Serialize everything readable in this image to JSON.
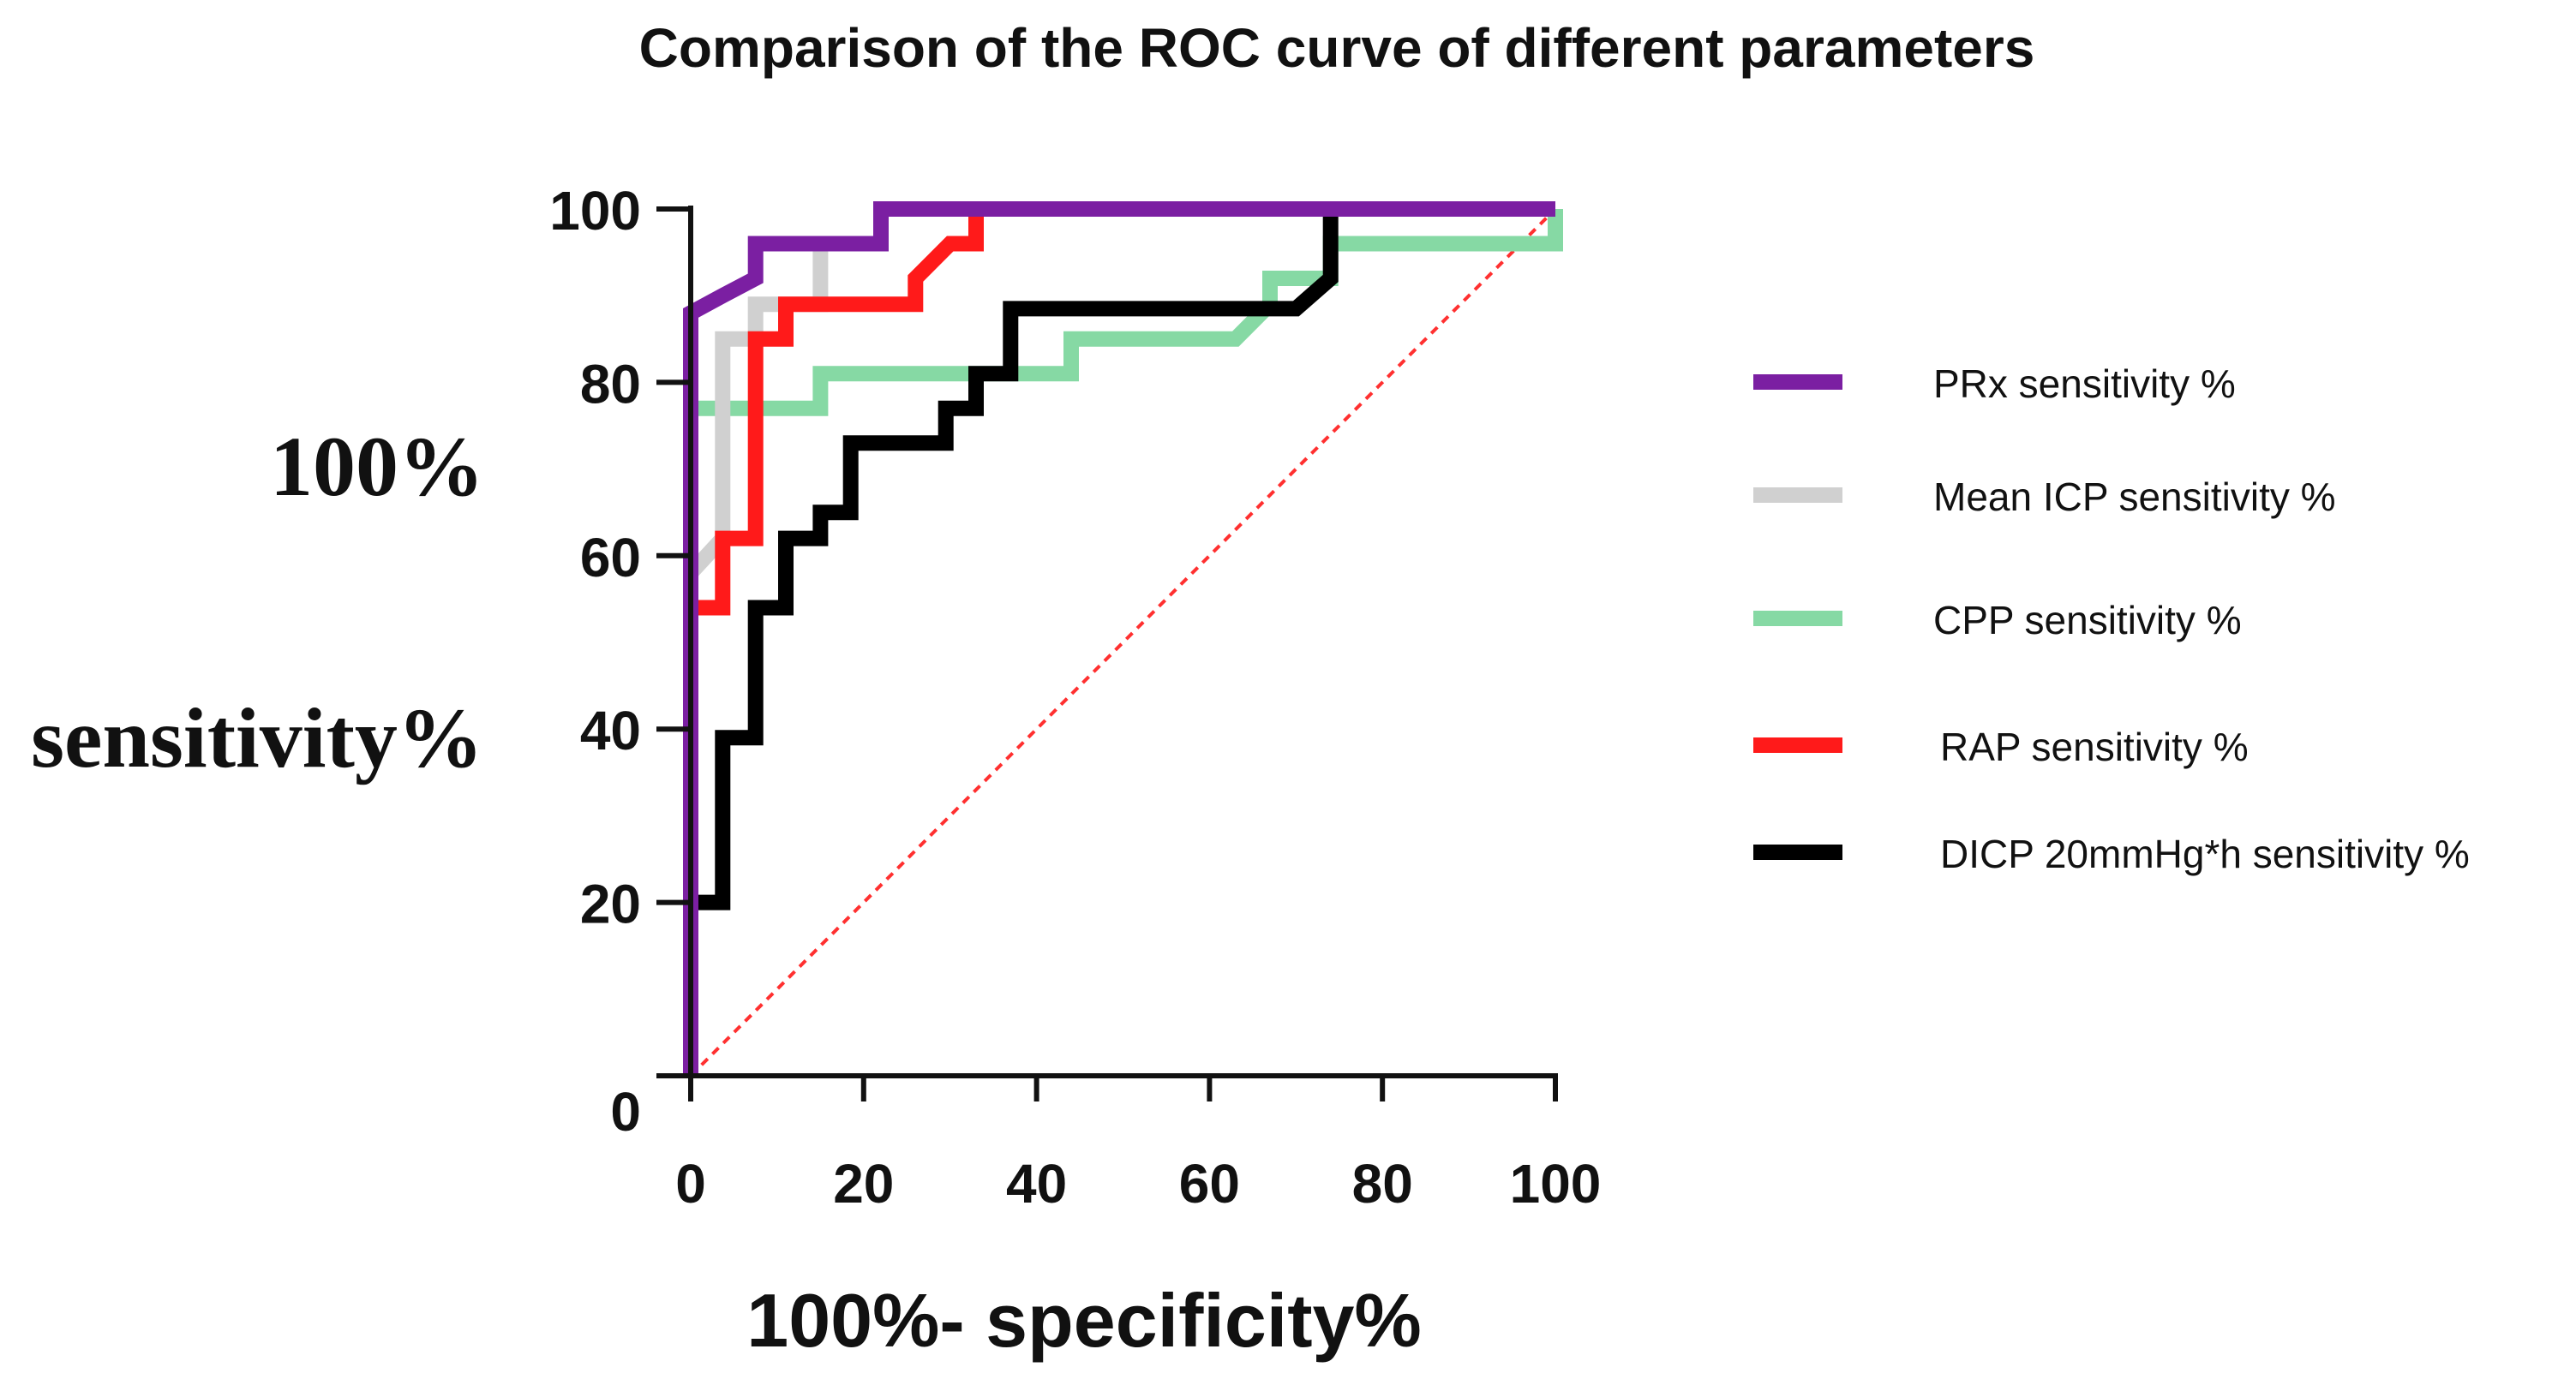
{
  "chart_data": {
    "type": "line",
    "title": "Comparison of the ROC curve of different parameters",
    "xlabel": "100%- specificity%",
    "ylabel_line1": "100%",
    "ylabel_line2": "sensitivity%",
    "xlim": [
      0,
      100
    ],
    "ylim": [
      0,
      100
    ],
    "xticks": [
      "0",
      "20",
      "40",
      "60",
      "80",
      "100"
    ],
    "yticks": [
      "0",
      "20",
      "40",
      "60",
      "80",
      "100"
    ],
    "grid": false,
    "legend_position": "right",
    "reference_line": {
      "from": [
        0,
        0
      ],
      "to": [
        100,
        100
      ],
      "style": "dashed",
      "color": "#ff3030"
    },
    "series": [
      {
        "name": "PRx sensitivity  %",
        "color": "#7b1fa2",
        "points": [
          [
            0,
            0
          ],
          [
            0,
            57
          ],
          [
            0,
            88
          ],
          [
            3.7,
            90
          ],
          [
            7.5,
            92
          ],
          [
            7.5,
            96
          ],
          [
            22,
            96
          ],
          [
            22,
            100
          ],
          [
            100,
            100
          ]
        ]
      },
      {
        "name": "Mean ICP sensitivity %",
        "color": "#d0d0d0",
        "points": [
          [
            0,
            0
          ],
          [
            0,
            58
          ],
          [
            3.7,
            62
          ],
          [
            3.7,
            85
          ],
          [
            7.5,
            85
          ],
          [
            7.5,
            89
          ],
          [
            15,
            89
          ],
          [
            15,
            96
          ],
          [
            22,
            96
          ],
          [
            22,
            100
          ],
          [
            100,
            100
          ]
        ]
      },
      {
        "name": "CPP sensitivity %",
        "color": "#86d9a4",
        "points": [
          [
            0,
            0
          ],
          [
            0,
            77
          ],
          [
            15,
            77
          ],
          [
            15,
            81
          ],
          [
            44,
            81
          ],
          [
            44,
            85
          ],
          [
            63,
            85
          ],
          [
            67,
            89
          ],
          [
            67,
            92
          ],
          [
            74,
            92
          ],
          [
            74,
            96
          ],
          [
            100,
            96
          ],
          [
            100,
            100
          ]
        ]
      },
      {
        "name": "RAP sensitivity %",
        "color": "#ff1a1a",
        "points": [
          [
            0,
            0
          ],
          [
            0,
            54
          ],
          [
            3.7,
            54
          ],
          [
            3.7,
            62
          ],
          [
            7.5,
            62
          ],
          [
            7.5,
            85
          ],
          [
            11,
            85
          ],
          [
            11,
            89
          ],
          [
            26,
            89
          ],
          [
            26,
            92
          ],
          [
            30,
            96
          ],
          [
            33,
            96
          ],
          [
            33,
            100
          ],
          [
            100,
            100
          ]
        ]
      },
      {
        "name": "DICP  20mmHg*h sensitivity %",
        "color": "#000000",
        "points": [
          [
            0,
            0
          ],
          [
            0,
            20
          ],
          [
            3.7,
            20
          ],
          [
            3.7,
            39
          ],
          [
            7.5,
            39
          ],
          [
            7.5,
            54
          ],
          [
            11,
            54
          ],
          [
            11,
            62
          ],
          [
            15,
            62
          ],
          [
            15,
            65
          ],
          [
            18.5,
            65
          ],
          [
            18.5,
            73
          ],
          [
            29.5,
            73
          ],
          [
            29.5,
            77
          ],
          [
            33,
            77
          ],
          [
            33,
            81
          ],
          [
            37,
            81
          ],
          [
            37,
            88.5
          ],
          [
            70,
            88.5
          ],
          [
            74,
            92
          ],
          [
            74,
            100
          ],
          [
            100,
            100
          ]
        ]
      }
    ]
  }
}
